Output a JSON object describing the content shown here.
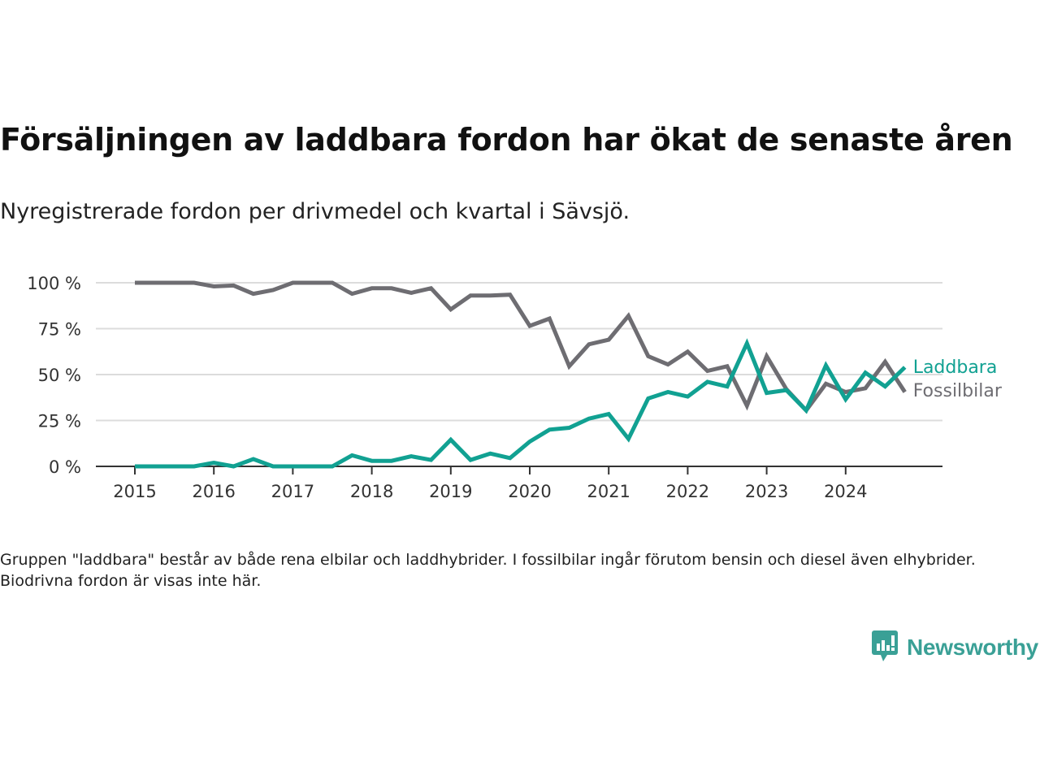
{
  "header": {
    "title": "Försäljningen av laddbara fordon har ökat de senaste åren",
    "subtitle": "Nyregistrerade fordon per drivmedel och kvartal i Sävsjö."
  },
  "footer": {
    "note": "Gruppen \"laddbara\" består av både rena elbilar och laddhybrider. I fossilbilar ingår förutom bensin och diesel även elhybrider. Biodrivna fordon är visas inte här.",
    "brand": "Newsworthy",
    "brand_icon": "newsworthy-logo-icon",
    "brand_color": "#3aa096"
  },
  "chart_data": {
    "type": "line",
    "title": "Försäljningen av laddbara fordon har ökat de senaste åren",
    "subtitle": "Nyregistrerade fordon per drivmedel och kvartal i Sävsjö.",
    "xlabel": "",
    "ylabel": "",
    "x_unit": "quarter",
    "x_start": "2015 Q1",
    "x_end": "2024 Q4",
    "x_tick_labels": [
      "2015",
      "2016",
      "2017",
      "2018",
      "2019",
      "2020",
      "2021",
      "2022",
      "2023",
      "2024"
    ],
    "y_tick_values": [
      0,
      25,
      50,
      75,
      100
    ],
    "y_tick_labels": [
      "0 %",
      "25 %",
      "50 %",
      "75 %",
      "100 %"
    ],
    "ylim": [
      0,
      100
    ],
    "grid": true,
    "legend": "right-end-labels",
    "series": [
      {
        "name": "Laddbara",
        "color": "#11a192",
        "values": [
          0,
          0,
          0,
          0,
          2,
          0,
          4,
          0,
          0,
          0,
          0,
          6,
          3,
          3,
          5.5,
          3.5,
          14.5,
          3.5,
          7,
          4.5,
          13.5,
          20,
          21,
          26,
          28.5,
          15,
          37,
          40.5,
          38,
          46,
          43.5,
          67,
          40,
          41.5,
          30.5,
          55,
          36.5,
          51,
          43.5,
          54
        ]
      },
      {
        "name": "Fossilbilar",
        "color": "#6e6d72",
        "values": [
          100,
          100,
          100,
          100,
          98,
          98.5,
          94,
          96,
          100,
          100,
          100,
          94,
          97,
          97,
          94.5,
          97,
          85.5,
          93,
          93,
          93.5,
          76.5,
          80.5,
          54.5,
          66.5,
          69,
          82,
          60,
          55.5,
          62.5,
          52,
          54.5,
          33,
          60,
          42,
          30.5,
          45,
          40.5,
          42.5,
          57,
          40.5
        ]
      }
    ]
  }
}
